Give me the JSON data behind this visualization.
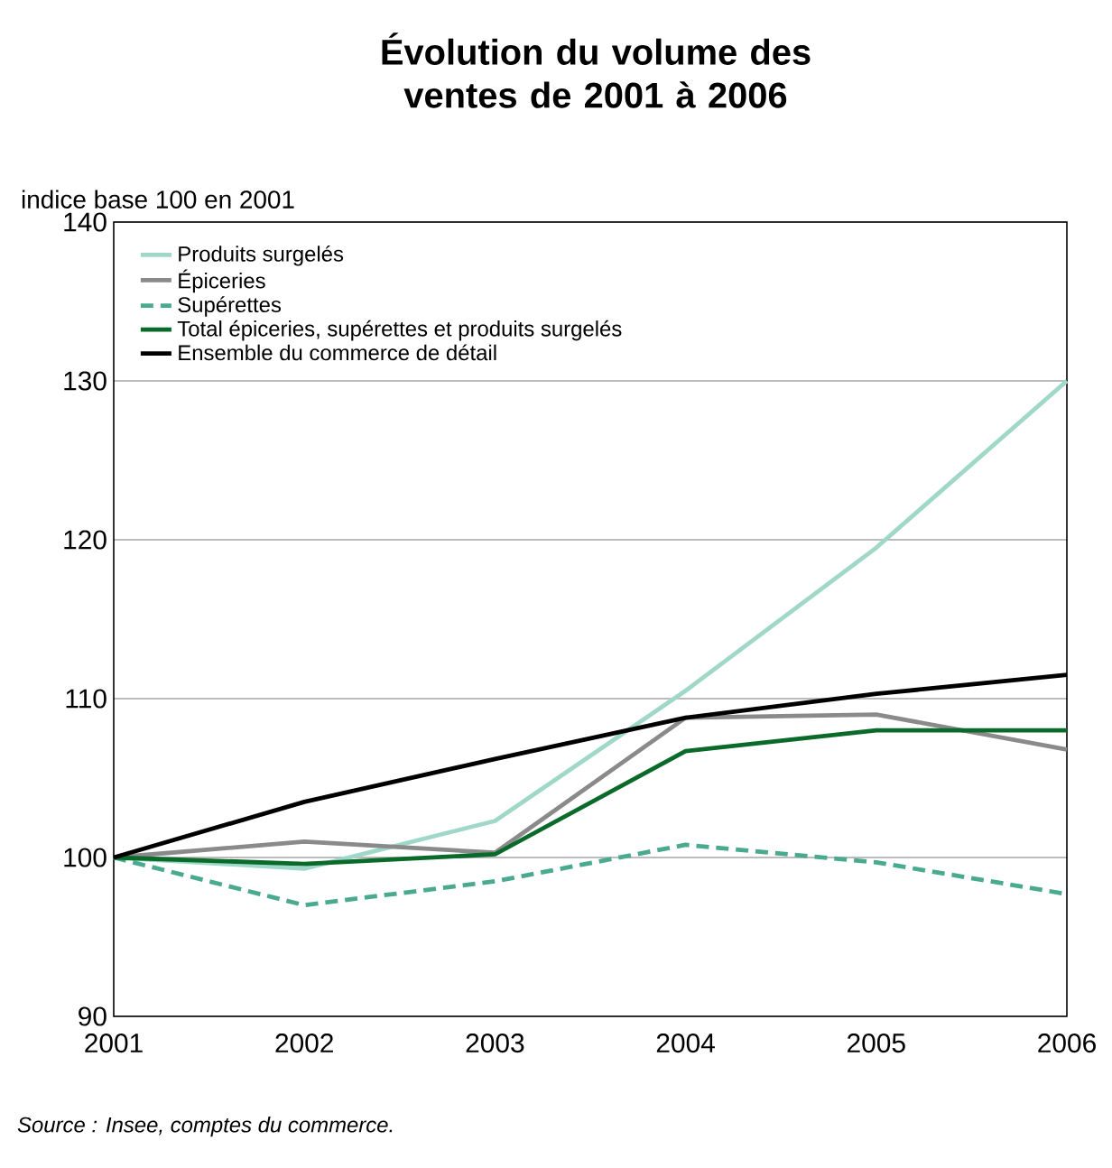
{
  "chart_data": {
    "type": "line",
    "title": "Évolution du volume des ventes de 2001 à 2006",
    "ylabel": "indice base 100 en 2001",
    "x": [
      2001,
      2002,
      2003,
      2004,
      2005,
      2006
    ],
    "series": [
      {
        "name": "Produits surgelés",
        "color": "#9fd8c8",
        "line_style": "solid",
        "values": [
          100,
          99.3,
          102.3,
          110.5,
          119.5,
          130
        ]
      },
      {
        "name": "Épiceries",
        "color": "#8a8a8a",
        "line_style": "solid",
        "values": [
          100,
          101,
          100.3,
          108.8,
          109,
          106.8
        ]
      },
      {
        "name": "Supérettes",
        "color": "#4aaa90",
        "line_style": "dashed",
        "values": [
          100,
          97,
          98.5,
          100.8,
          99.7,
          97.7
        ]
      },
      {
        "name": "Total épiceries, supérettes et produits surgelés",
        "color": "#0a6a2a",
        "line_style": "solid",
        "values": [
          100,
          99.6,
          100.2,
          106.7,
          108,
          108
        ]
      },
      {
        "name": "Ensemble du commerce de détail",
        "color": "#000000",
        "line_style": "solid",
        "values": [
          100,
          103.5,
          106.2,
          108.8,
          110.3,
          111.5
        ]
      }
    ],
    "xlim": [
      2001,
      2006
    ],
    "ylim": [
      90,
      140
    ],
    "xticks": [
      2001,
      2002,
      2003,
      2004,
      2005,
      2006
    ],
    "yticks": [
      90,
      100,
      110,
      120,
      130,
      140
    ],
    "grid": "y",
    "legend": "top left",
    "marker": "none",
    "annotations": [
      "Source : Insee, comptes du commerce."
    ]
  }
}
